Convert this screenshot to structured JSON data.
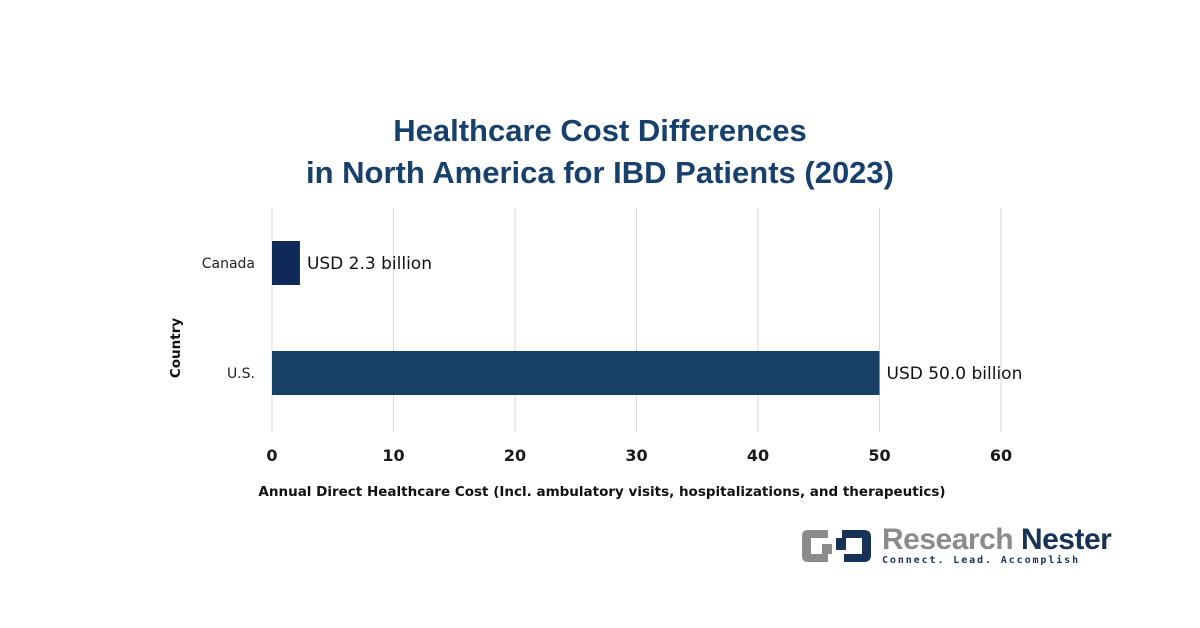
{
  "chart_data": {
    "type": "bar",
    "orientation": "horizontal",
    "title": "Healthcare Cost Differences in North America for IBD Patients (2023)",
    "title_lines": [
      "Healthcare Cost Differences",
      "in North America for IBD Patients (2023)"
    ],
    "xlabel": "Annual Direct Healthcare Cost (Incl. ambulatory visits, hospitalizations, and therapeutics)",
    "ylabel": "Country",
    "categories": [
      "Canada",
      "U.S."
    ],
    "values": [
      2.3,
      50.0
    ],
    "data_labels": [
      "USD 2.3 billion",
      "USD 50.0 billion"
    ],
    "bar_colors": [
      "#0f2a5a",
      "#173f68"
    ],
    "xlim": [
      0,
      60
    ],
    "xticks": [
      0,
      10,
      20,
      30,
      40,
      50,
      60
    ],
    "xtick_labels": [
      "0",
      "10",
      "20",
      "30",
      "40",
      "50",
      "60"
    ],
    "grid": true,
    "legend": "none"
  },
  "branding": {
    "name_part1": "Research",
    "name_part2": "Nester",
    "tagline": "Connect. Lead. Accomplish"
  }
}
